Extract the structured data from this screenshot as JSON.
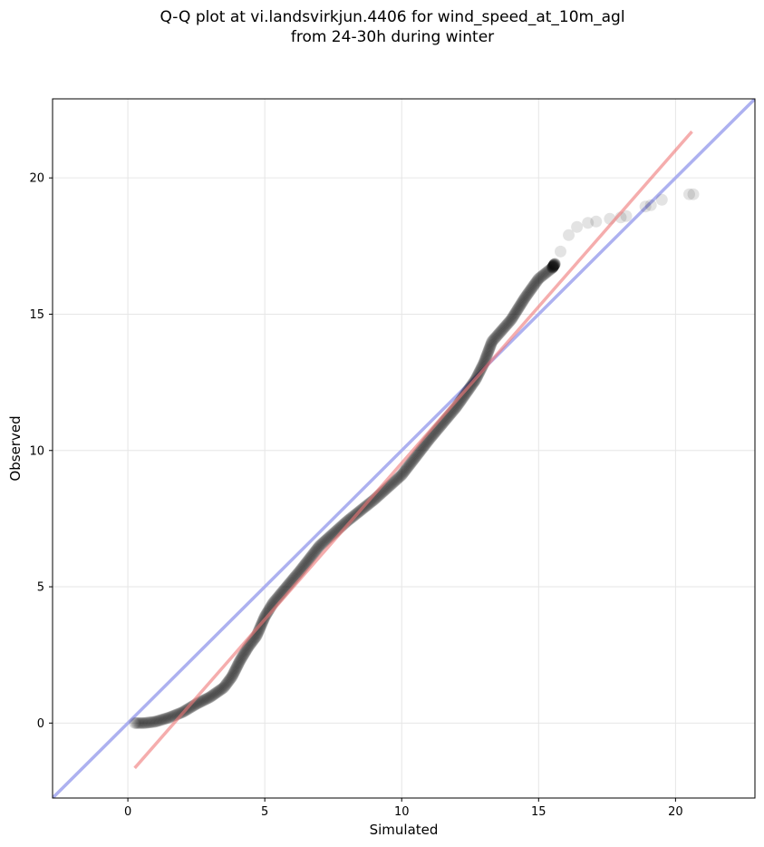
{
  "title": {
    "line1": "Q-Q plot at vi.landsvirkjun.4406 for wind_speed_at_10m_agl",
    "line2": "from 24-30h during winter"
  },
  "colors": {
    "points": "#000000",
    "fit_line": "#f4a3a3",
    "identity_line": "#a9adf0",
    "grid": "#e6e6e6"
  },
  "chart_data": {
    "type": "scatter",
    "title": "Q-Q plot at vi.landsvirkjun.4406 for wind_speed_at_10m_agl from 24-30h during winter",
    "xlabel": "Simulated",
    "ylabel": "Observed",
    "xlim": [
      -2.75,
      22.9
    ],
    "ylim": [
      -2.75,
      22.9
    ],
    "xticks": [
      0,
      5,
      10,
      15,
      20
    ],
    "yticks": [
      0,
      5,
      10,
      15,
      20
    ],
    "grid": true,
    "fit_line": {
      "from": [
        0.25,
        -1.65
      ],
      "to": [
        20.6,
        21.7
      ]
    },
    "identity_line": {
      "from": [
        -2.75,
        -2.75
      ],
      "to": [
        22.9,
        22.9
      ]
    },
    "quantile_knots": [
      [
        0.25,
        0.0
      ],
      [
        0.6,
        0.0
      ],
      [
        1.0,
        0.05
      ],
      [
        1.5,
        0.2
      ],
      [
        2.0,
        0.4
      ],
      [
        2.5,
        0.7
      ],
      [
        3.0,
        0.95
      ],
      [
        3.5,
        1.3
      ],
      [
        3.8,
        1.7
      ],
      [
        4.1,
        2.3
      ],
      [
        4.4,
        2.8
      ],
      [
        4.7,
        3.2
      ],
      [
        5.0,
        3.9
      ],
      [
        5.3,
        4.4
      ],
      [
        5.8,
        5.0
      ],
      [
        6.3,
        5.6
      ],
      [
        7.0,
        6.5
      ],
      [
        8.0,
        7.4
      ],
      [
        9.0,
        8.2
      ],
      [
        10.0,
        9.1
      ],
      [
        11.0,
        10.4
      ],
      [
        12.0,
        11.6
      ],
      [
        12.7,
        12.6
      ],
      [
        13.0,
        13.2
      ],
      [
        13.3,
        14.0
      ],
      [
        14.0,
        14.8
      ],
      [
        14.5,
        15.6
      ],
      [
        15.0,
        16.3
      ],
      [
        15.5,
        16.7
      ],
      [
        16.0,
        17.5
      ],
      [
        16.3,
        18.1
      ],
      [
        16.8,
        18.3
      ],
      [
        17.5,
        18.5
      ],
      [
        18.3,
        18.6
      ],
      [
        19.5,
        19.2
      ],
      [
        20.7,
        19.4
      ]
    ],
    "tail_points": [
      [
        15.8,
        17.3
      ],
      [
        16.1,
        17.9
      ],
      [
        16.4,
        18.2
      ],
      [
        16.8,
        18.35
      ],
      [
        17.1,
        18.4
      ],
      [
        17.6,
        18.5
      ],
      [
        18.0,
        18.55
      ],
      [
        18.2,
        18.6
      ],
      [
        18.9,
        18.95
      ],
      [
        19.1,
        19.0
      ],
      [
        19.5,
        19.2
      ],
      [
        20.5,
        19.4
      ],
      [
        20.65,
        19.4
      ]
    ]
  }
}
